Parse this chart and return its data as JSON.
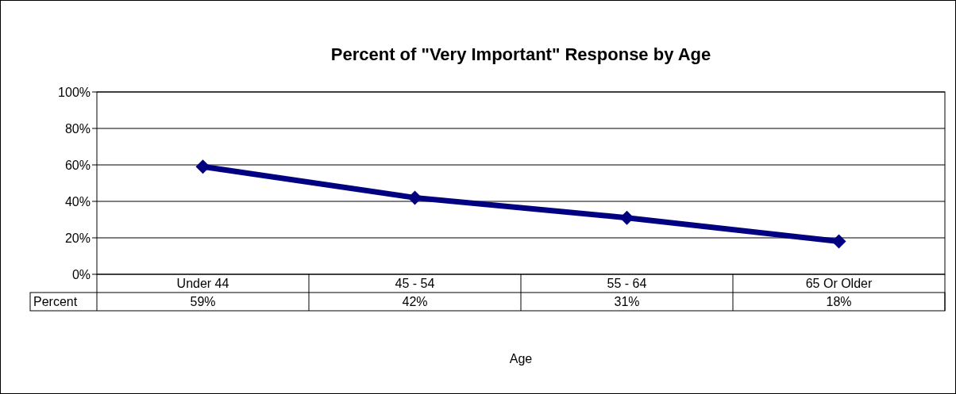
{
  "chart_data": {
    "type": "line",
    "title": "Percent of \"Very Important\" Response by Age",
    "xlabel": "Age",
    "categories": [
      "Under 44",
      "45 - 54",
      "55 - 64",
      "65 Or Older"
    ],
    "series": [
      {
        "name": "Percent",
        "color": "#000080",
        "values": [
          59,
          42,
          31,
          18
        ]
      }
    ],
    "ylim": [
      0,
      100
    ],
    "yticks": [
      {
        "value": 0,
        "label": "0%"
      },
      {
        "value": 20,
        "label": "20%"
      },
      {
        "value": 40,
        "label": "40%"
      },
      {
        "value": 60,
        "label": "60%"
      },
      {
        "value": 80,
        "label": "80%"
      },
      {
        "value": 100,
        "label": "100%"
      }
    ],
    "grid": "y",
    "marker": "diamond",
    "line_style": "solid",
    "value_labels": [
      "59%",
      "42%",
      "31%",
      "18%"
    ]
  }
}
